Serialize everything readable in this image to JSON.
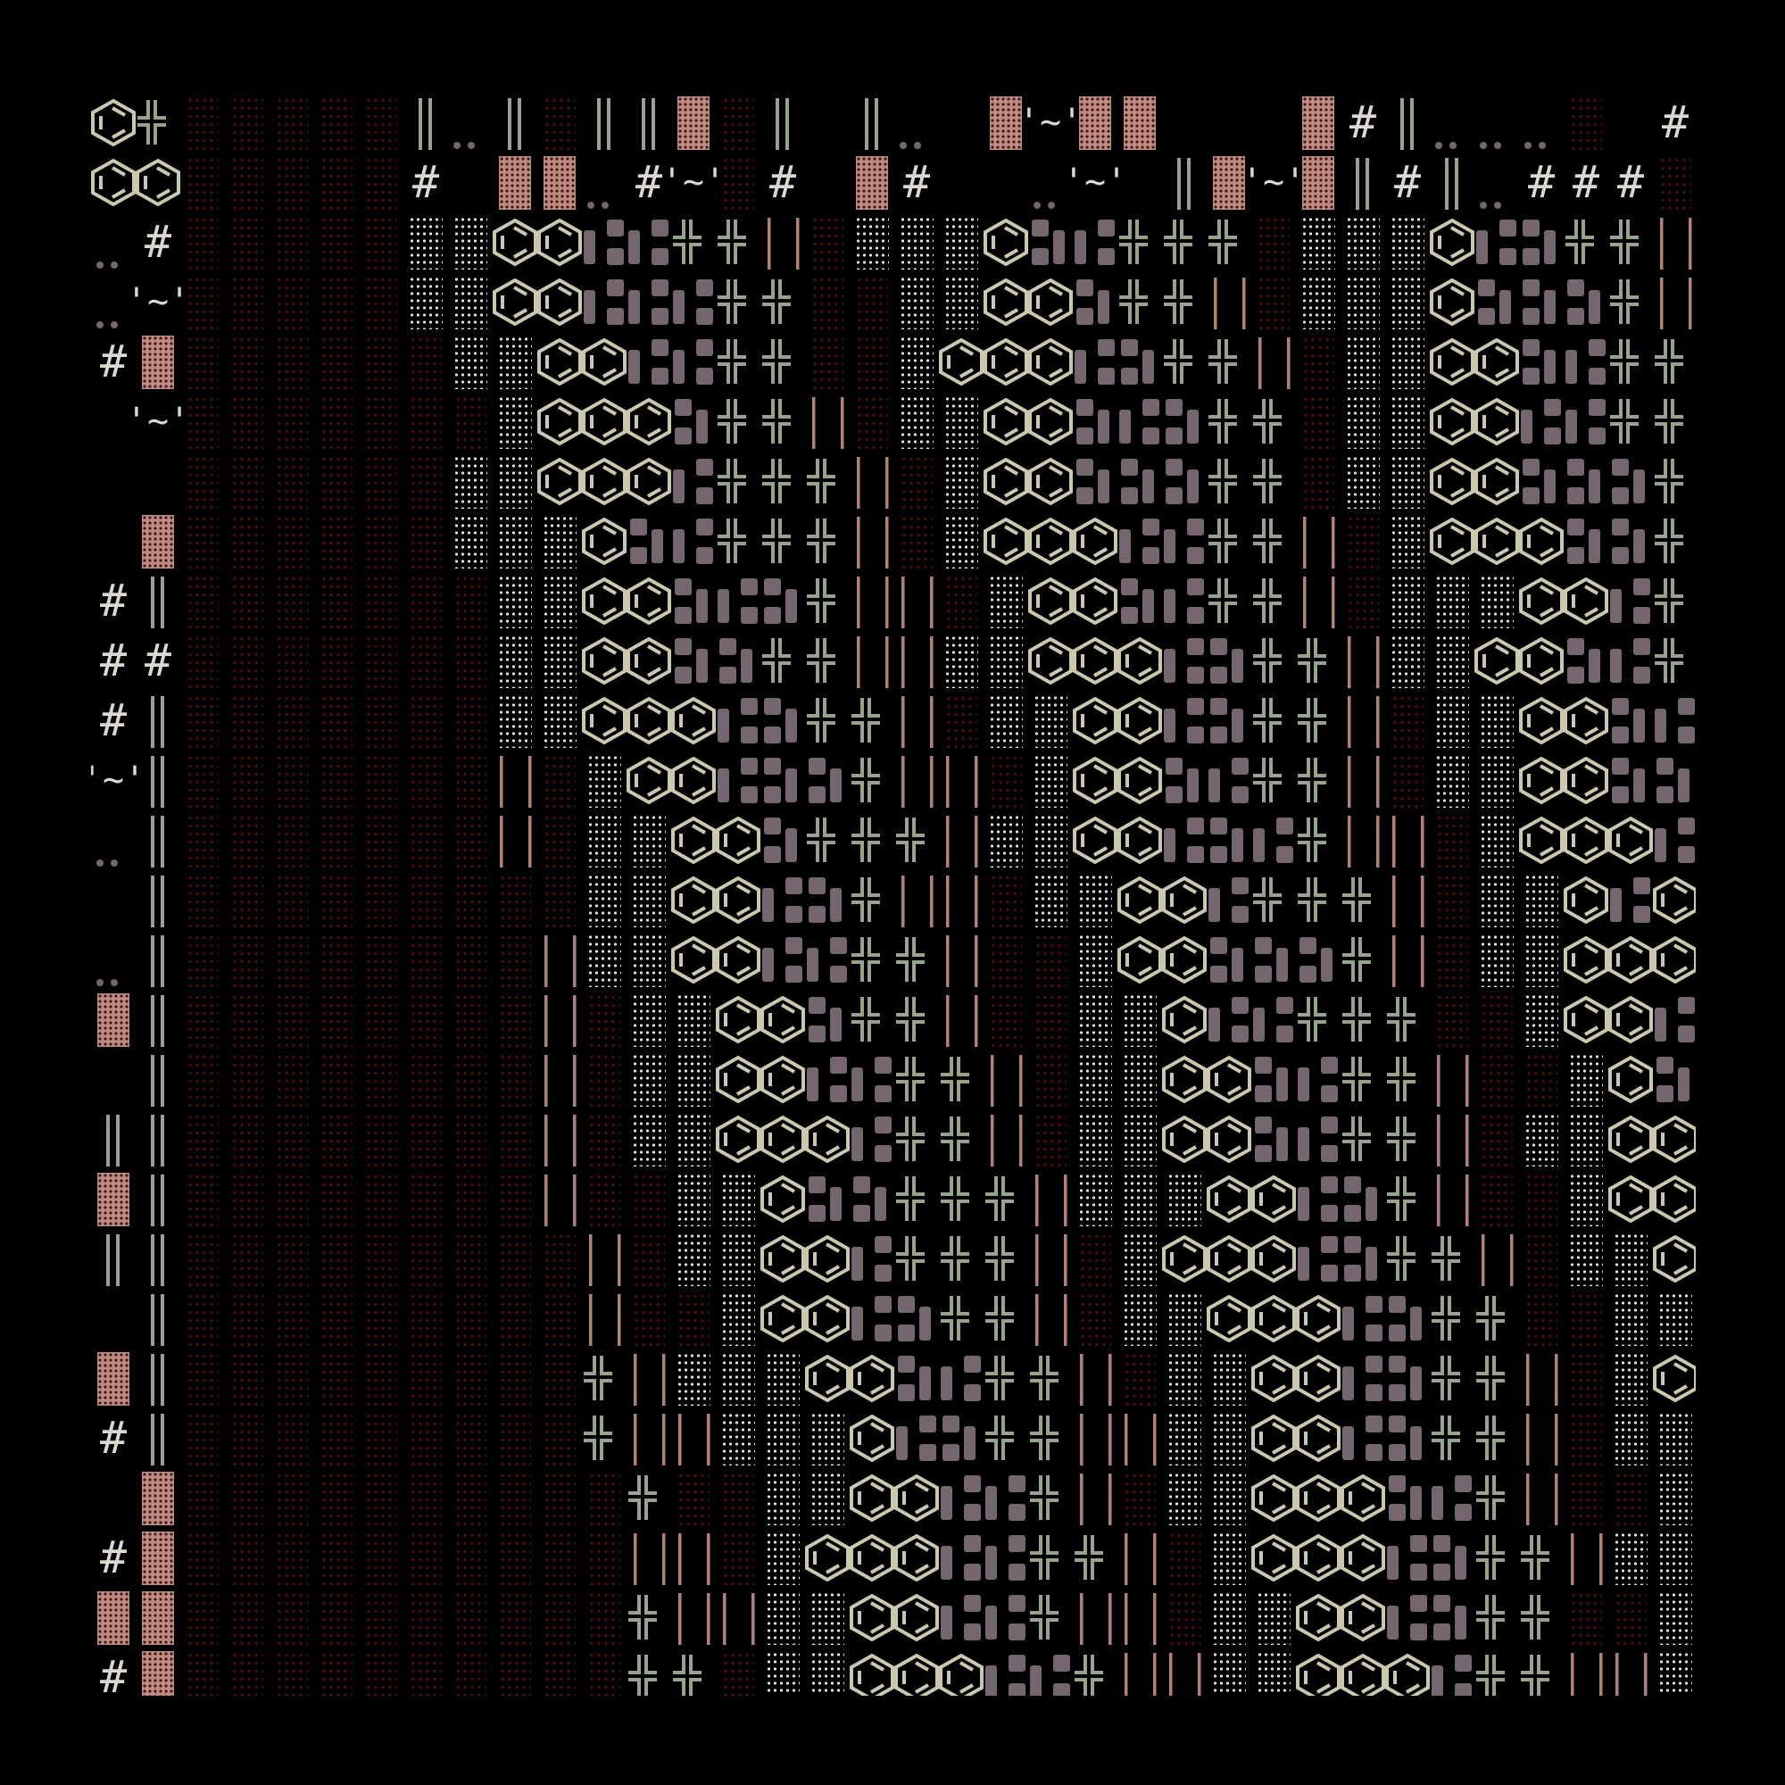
{
  "artwork": {
    "grid": {
      "columns": 36,
      "rows": 27
    },
    "band_sequence": [
      "stipple",
      "stipple",
      "hexagon",
      "hexagon",
      "purple-blocks",
      "purple-blocks",
      "cross",
      "cross",
      "pink-lines",
      "dark-dots"
    ],
    "text_glyphs": {
      "hash": "#",
      "tilde": "'~'",
      "double_tilde": "'~\"~'",
      "dots": ".."
    },
    "palette": {
      "background": "#000000",
      "hexagon": "#cbc8ae",
      "cross": "#95a48a",
      "pink_line": "#b57f74",
      "pink_block": "#c08a80",
      "purple_block": "#75656f",
      "stipple": "#e6e0d4",
      "dark_dots": "#5e0808",
      "text": "#dcd8d0"
    }
  }
}
